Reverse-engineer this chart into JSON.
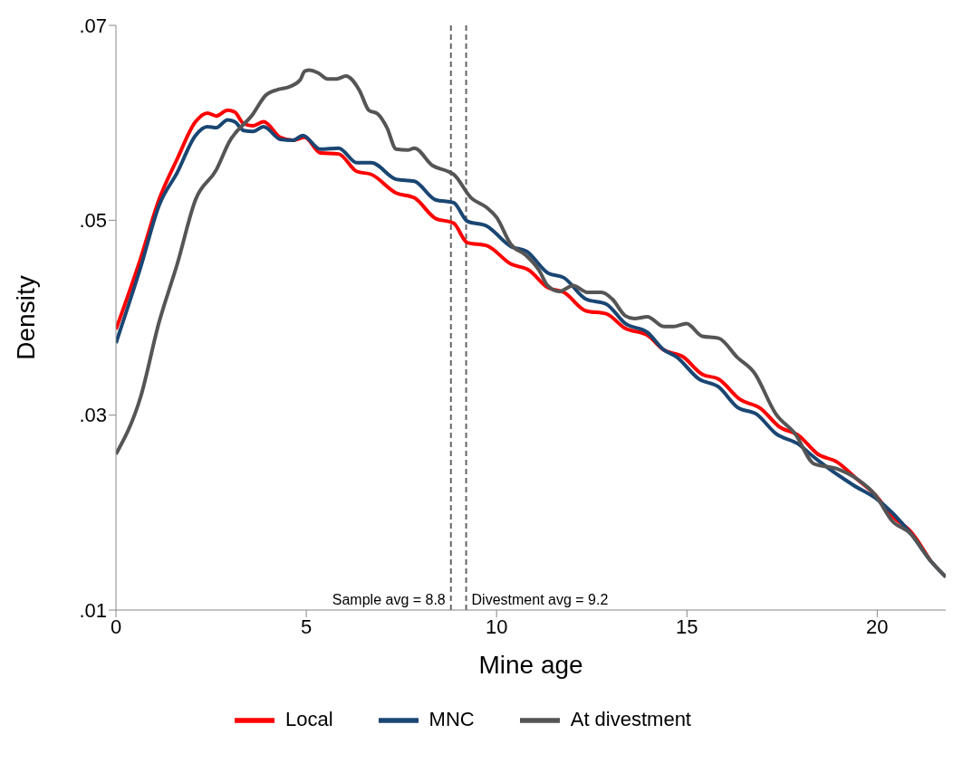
{
  "chart_data": {
    "type": "line",
    "xlabel": "Mine age",
    "ylabel": "Density",
    "xlim": [
      0,
      21.8
    ],
    "ylim": [
      0.01,
      0.07
    ],
    "xticks": [
      0,
      5,
      10,
      15,
      20
    ],
    "yticks": [
      {
        "value": 0.01,
        "label": ".01"
      },
      {
        "value": 0.03,
        "label": ".03"
      },
      {
        "value": 0.05,
        "label": ".05"
      },
      {
        "value": 0.07,
        "label": ".07"
      }
    ],
    "grid": false,
    "legend": "bottom",
    "marker": "none",
    "line_style": "solid",
    "ref_lines": [
      {
        "axis": "x",
        "value": 8.8,
        "label": "Sample avg = 8.8",
        "color": "#666666",
        "line_style": "dashed"
      },
      {
        "axis": "x",
        "value": 9.2,
        "label": "Divestment avg = 9.2",
        "color": "#666666",
        "line_style": "dashed"
      }
    ],
    "series": [
      {
        "name": "Local",
        "color": "#ff0000",
        "x": [
          0,
          0.65,
          1.13,
          1.61,
          2.09,
          2.4,
          2.64,
          2.93,
          3.12,
          3.36,
          3.6,
          3.88,
          4.32,
          4.65,
          4.96,
          5.37,
          5.85,
          6.33,
          6.71,
          7.36,
          7.84,
          8.39,
          8.87,
          9.23,
          9.74,
          10.38,
          10.84,
          11.34,
          11.77,
          12.35,
          12.88,
          13.38,
          13.96,
          14.39,
          14.89,
          15.4,
          15.83,
          16.4,
          16.93,
          17.43,
          17.94,
          18.44,
          18.94,
          19.45,
          19.95,
          20.38,
          20.89,
          21.39
        ],
        "values": [
          0.0388,
          0.0461,
          0.0521,
          0.0563,
          0.0601,
          0.061,
          0.0607,
          0.0613,
          0.0611,
          0.0599,
          0.0597,
          0.0601,
          0.0585,
          0.0582,
          0.0585,
          0.0569,
          0.0568,
          0.055,
          0.0547,
          0.0528,
          0.0523,
          0.0502,
          0.0497,
          0.0477,
          0.0474,
          0.0455,
          0.0449,
          0.0431,
          0.0426,
          0.0407,
          0.0404,
          0.0389,
          0.0382,
          0.0367,
          0.036,
          0.0342,
          0.0337,
          0.0316,
          0.0307,
          0.0288,
          0.0279,
          0.026,
          0.0252,
          0.0235,
          0.0218,
          0.0197,
          0.018,
          0.0151
        ]
      },
      {
        "name": "MNC",
        "color": "#1a4673",
        "x": [
          0,
          0.65,
          1.13,
          1.61,
          2.09,
          2.4,
          2.64,
          2.93,
          3.12,
          3.36,
          3.6,
          3.88,
          4.32,
          4.65,
          4.91,
          5.37,
          5.85,
          6.33,
          6.71,
          7.36,
          7.84,
          8.39,
          8.87,
          9.23,
          9.74,
          10.38,
          10.79,
          11.34,
          11.77,
          12.35,
          12.88,
          13.38,
          13.96,
          14.39,
          14.72,
          15.32,
          15.83,
          16.33,
          16.83,
          17.34,
          17.94,
          18.27,
          19.38,
          19.95,
          20.89,
          21.39,
          21.8
        ],
        "values": [
          0.0374,
          0.0452,
          0.0515,
          0.0549,
          0.0587,
          0.0596,
          0.0595,
          0.0603,
          0.0601,
          0.0592,
          0.0591,
          0.0596,
          0.0583,
          0.0582,
          0.0587,
          0.0573,
          0.0574,
          0.0559,
          0.0559,
          0.0542,
          0.054,
          0.0521,
          0.0518,
          0.0499,
          0.0494,
          0.0473,
          0.0468,
          0.0446,
          0.0441,
          0.0419,
          0.0414,
          0.0394,
          0.0385,
          0.0367,
          0.036,
          0.0337,
          0.0329,
          0.0308,
          0.0301,
          0.0281,
          0.027,
          0.0259,
          0.0228,
          0.0215,
          0.0178,
          0.0151,
          0.0134
        ]
      },
      {
        "name": "At divestment",
        "color": "#555555",
        "x": [
          0,
          0.65,
          1.13,
          1.61,
          2.09,
          2.64,
          2.97,
          3.6,
          3.93,
          4.24,
          4.56,
          4.84,
          4.96,
          5.08,
          5.32,
          5.56,
          5.8,
          6.04,
          6.4,
          6.64,
          6.88,
          7.12,
          7.36,
          7.67,
          7.84,
          8.32,
          8.73,
          8.87,
          9.33,
          9.74,
          10.0,
          10.38,
          10.77,
          11.11,
          11.34,
          11.65,
          12.01,
          12.38,
          12.76,
          13.04,
          13.38,
          13.62,
          13.96,
          14.39,
          14.65,
          14.99,
          15.4,
          15.83,
          16.33,
          16.76,
          17.34,
          17.84,
          18.34,
          18.94,
          19.45,
          19.95,
          20.38,
          20.89,
          21.39,
          21.8
        ],
        "values": [
          0.026,
          0.0319,
          0.0395,
          0.0455,
          0.0521,
          0.0552,
          0.058,
          0.0609,
          0.0628,
          0.0634,
          0.0637,
          0.0644,
          0.0653,
          0.0654,
          0.0651,
          0.0645,
          0.0645,
          0.0648,
          0.0633,
          0.0613,
          0.0609,
          0.0595,
          0.0573,
          0.0572,
          0.0574,
          0.0556,
          0.055,
          0.0547,
          0.0523,
          0.0513,
          0.0503,
          0.0475,
          0.0464,
          0.0449,
          0.0433,
          0.0427,
          0.0433,
          0.0426,
          0.0426,
          0.0419,
          0.0402,
          0.0399,
          0.0401,
          0.0391,
          0.0391,
          0.0394,
          0.0381,
          0.0379,
          0.0359,
          0.0344,
          0.0301,
          0.0281,
          0.025,
          0.0245,
          0.0235,
          0.0218,
          0.0192,
          0.0178,
          0.0151,
          0.0134
        ]
      }
    ]
  }
}
